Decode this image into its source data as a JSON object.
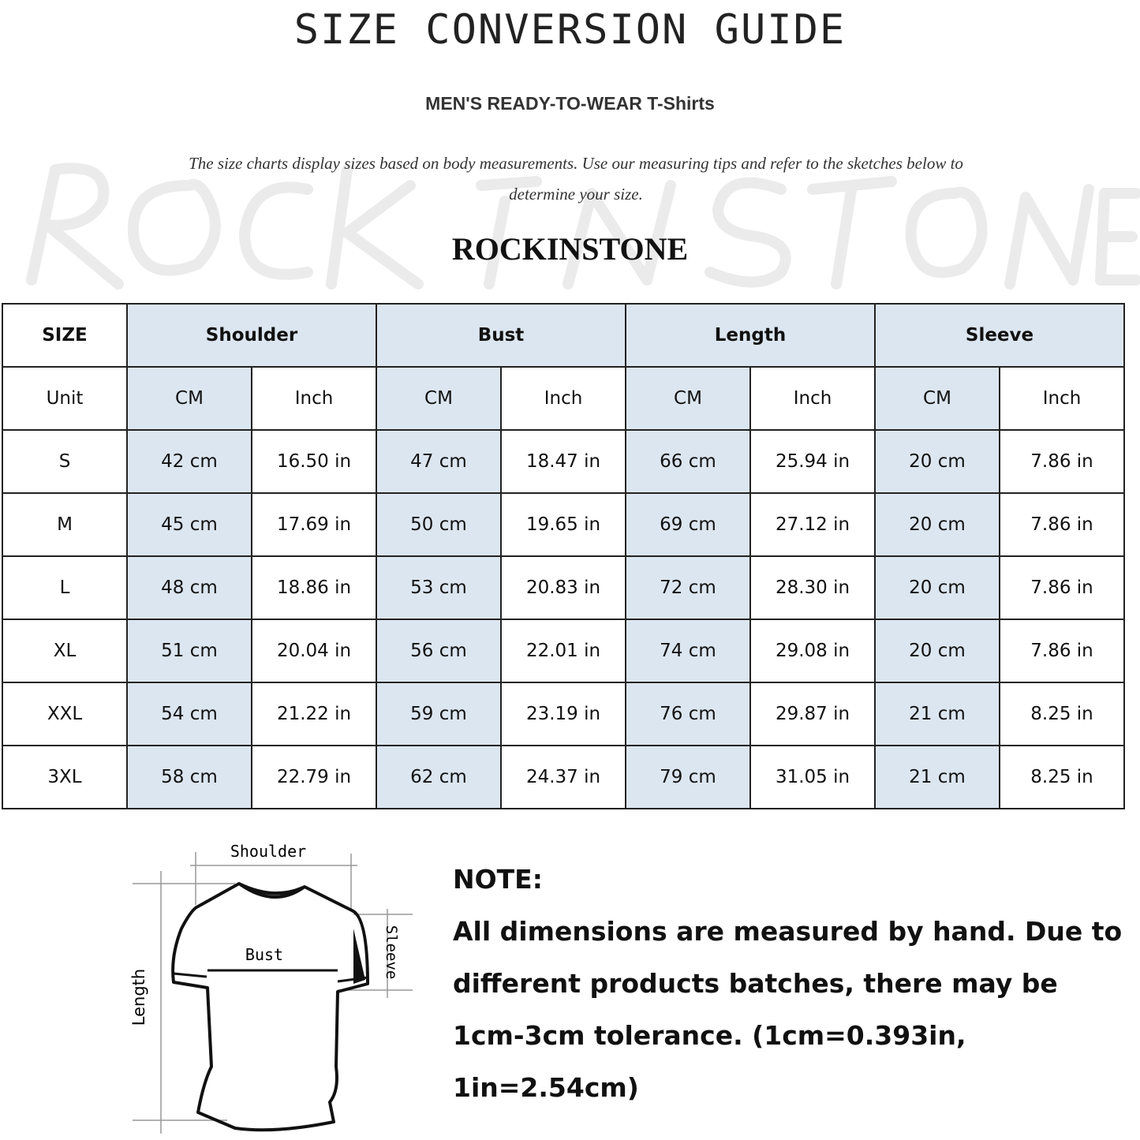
{
  "title": "SIZE CONVERSION GUIDE",
  "subtitle": "MEN'S READY-TO-WEAR T-Shirts",
  "intro": "The size charts display sizes based on body measurements. Use our measuring tips and refer to the sketches below to determine your size.",
  "watermark": "ROCK IN STONE",
  "brand": "ROCKINSTONE",
  "table": {
    "headers": [
      "SIZE",
      "Shoulder",
      "Bust",
      "Length",
      "Sleeve"
    ],
    "unit_row": [
      "Unit",
      "CM",
      "Inch",
      "CM",
      "Inch",
      "CM",
      "Inch",
      "CM",
      "Inch"
    ],
    "rows": [
      [
        "S",
        "42 cm",
        "16.50 in",
        "47 cm",
        "18.47  in",
        "66 cm",
        "25.94  in",
        "20 cm",
        "7.86  in"
      ],
      [
        "M",
        "45 cm",
        "17.69  in",
        "50 cm",
        "19.65  in",
        "69 cm",
        "27.12  in",
        "20 cm",
        "7.86  in"
      ],
      [
        "L",
        "48 cm",
        "18.86  in",
        "53 cm",
        "20.83  in",
        "72 cm",
        "28.30  in",
        "20 cm",
        "7.86  in"
      ],
      [
        "XL",
        "51 cm",
        "20.04  in",
        "56 cm",
        "22.01  in",
        "74 cm",
        "29.08  in",
        "20 cm",
        "7.86  in"
      ],
      [
        "XXL",
        "54 cm",
        "21.22  in",
        "59 cm",
        "23.19  in",
        "76 cm",
        "29.87  in",
        "21 cm",
        "8.25  in"
      ],
      [
        "3XL",
        "58 cm",
        "22.79  in",
        "62 cm",
        "24.37  in",
        "79 cm",
        "31.05  in",
        "21 cm",
        "8.25  in"
      ]
    ],
    "accent_color": "#dce6f0"
  },
  "sketch": {
    "shoulder": "Shoulder",
    "bust": "Bust",
    "sleeve": "Sleeve",
    "length": "Length"
  },
  "note": {
    "heading": "NOTE:",
    "text": "All dimensions are measured by hand. Due to different products batches, there may be 1cm-3cm tolerance. (1cm=0.393in, 1in=2.54cm)"
  }
}
